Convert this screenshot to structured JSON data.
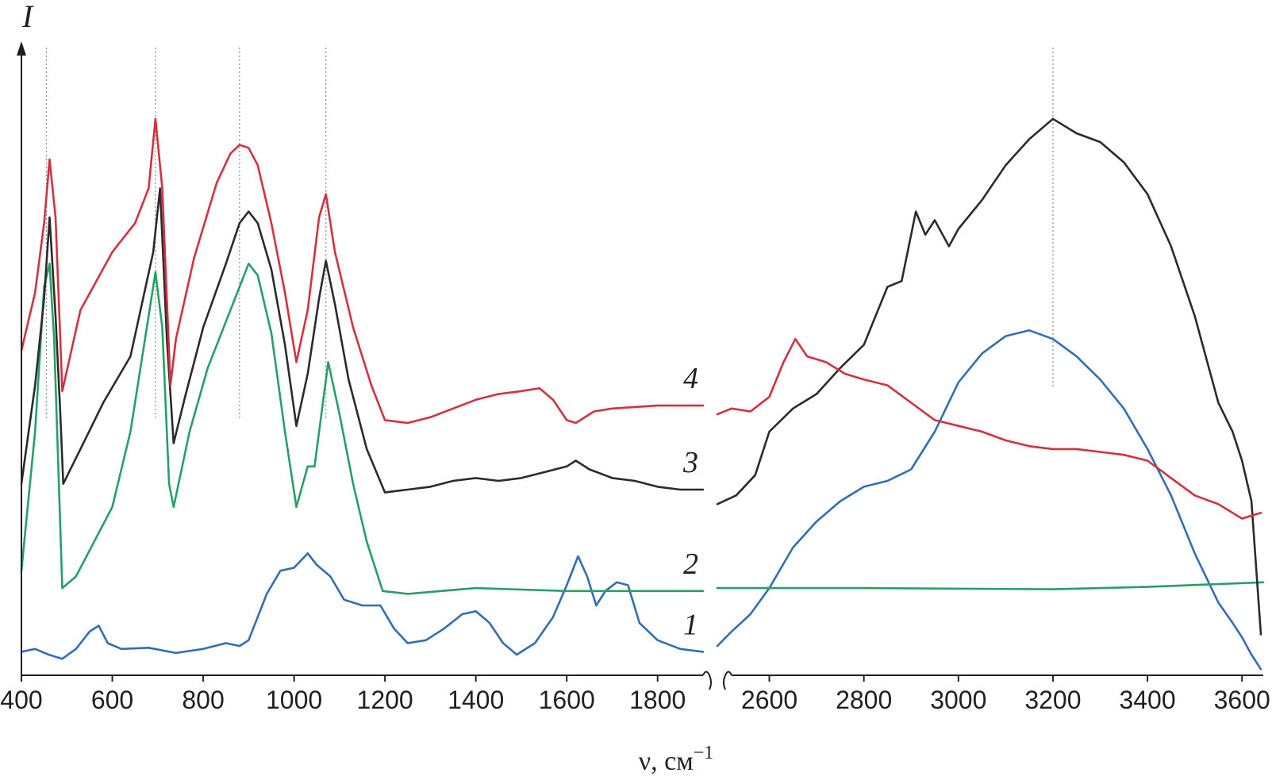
{
  "chart_data": {
    "type": "line",
    "y_axis_title": "I",
    "x_axis_title": "ν, см",
    "x_axis_title_exponent": "−1",
    "x_axis_break": true,
    "panels": [
      {
        "name": "left",
        "xlim": [
          400,
          1900
        ],
        "ticks": [
          400,
          600,
          800,
          1000,
          1200,
          1400,
          1600,
          1800
        ]
      },
      {
        "name": "right",
        "xlim": [
          2490,
          3645
        ],
        "ticks": [
          2600,
          2800,
          3000,
          3200,
          3400,
          3600
        ]
      }
    ],
    "ylim": [
      0,
      100
    ],
    "reference_lines": [
      455,
      695,
      880,
      1070,
      3200
    ],
    "series": [
      {
        "label": "1",
        "color": "#2f6fb7",
        "left": [
          [
            400,
            2
          ],
          [
            430,
            2.5
          ],
          [
            460,
            1.5
          ],
          [
            490,
            0.8
          ],
          [
            520,
            2.5
          ],
          [
            550,
            5.5
          ],
          [
            570,
            6.5
          ],
          [
            590,
            3.5
          ],
          [
            620,
            2.5
          ],
          [
            680,
            2.7
          ],
          [
            740,
            1.8
          ],
          [
            800,
            2.5
          ],
          [
            850,
            3.5
          ],
          [
            880,
            3
          ],
          [
            900,
            4
          ],
          [
            940,
            12
          ],
          [
            970,
            16
          ],
          [
            1000,
            16.5
          ],
          [
            1030,
            19
          ],
          [
            1050,
            17
          ],
          [
            1080,
            15
          ],
          [
            1110,
            11
          ],
          [
            1150,
            10
          ],
          [
            1190,
            10
          ],
          [
            1220,
            6
          ],
          [
            1250,
            3.5
          ],
          [
            1290,
            4
          ],
          [
            1330,
            6
          ],
          [
            1370,
            8.5
          ],
          [
            1400,
            9
          ],
          [
            1430,
            7
          ],
          [
            1460,
            3.5
          ],
          [
            1490,
            1.5
          ],
          [
            1530,
            3.5
          ],
          [
            1570,
            8
          ],
          [
            1600,
            13.5
          ],
          [
            1625,
            18.5
          ],
          [
            1645,
            15
          ],
          [
            1665,
            10
          ],
          [
            1685,
            12.5
          ],
          [
            1710,
            14
          ],
          [
            1735,
            13.5
          ],
          [
            1760,
            7
          ],
          [
            1800,
            4
          ],
          [
            1850,
            2.5
          ],
          [
            1900,
            2
          ]
        ],
        "right": [
          [
            2490,
            3
          ],
          [
            2520,
            5.5
          ],
          [
            2560,
            8.5
          ],
          [
            2600,
            13
          ],
          [
            2650,
            20
          ],
          [
            2700,
            24.5
          ],
          [
            2750,
            28
          ],
          [
            2800,
            30.5
          ],
          [
            2850,
            31.5
          ],
          [
            2900,
            33.5
          ],
          [
            2950,
            40
          ],
          [
            3000,
            48.5
          ],
          [
            3050,
            53.5
          ],
          [
            3100,
            56.5
          ],
          [
            3150,
            57.5
          ],
          [
            3200,
            56
          ],
          [
            3250,
            53
          ],
          [
            3300,
            49
          ],
          [
            3350,
            44
          ],
          [
            3400,
            37
          ],
          [
            3450,
            29
          ],
          [
            3500,
            19
          ],
          [
            3550,
            10.5
          ],
          [
            3580,
            7
          ],
          [
            3600,
            4.5
          ],
          [
            3620,
            1.5
          ],
          [
            3640,
            -1
          ]
        ]
      },
      {
        "label": "2",
        "color": "#24a163",
        "left": [
          [
            400,
            16
          ],
          [
            430,
            40
          ],
          [
            450,
            65
          ],
          [
            462,
            69
          ],
          [
            472,
            56
          ],
          [
            490,
            13
          ],
          [
            520,
            15
          ],
          [
            560,
            21
          ],
          [
            600,
            27
          ],
          [
            640,
            40
          ],
          [
            670,
            55
          ],
          [
            695,
            67.5
          ],
          [
            710,
            58
          ],
          [
            725,
            31
          ],
          [
            735,
            27
          ],
          [
            770,
            40
          ],
          [
            810,
            51
          ],
          [
            850,
            59
          ],
          [
            880,
            65
          ],
          [
            900,
            69
          ],
          [
            920,
            67
          ],
          [
            950,
            57
          ],
          [
            980,
            40
          ],
          [
            1005,
            27
          ],
          [
            1030,
            34
          ],
          [
            1045,
            34
          ],
          [
            1075,
            52
          ],
          [
            1100,
            43
          ],
          [
            1130,
            31
          ],
          [
            1160,
            21
          ],
          [
            1195,
            12.5
          ],
          [
            1250,
            12
          ],
          [
            1400,
            13
          ],
          [
            1600,
            12.5
          ],
          [
            1900,
            12.5
          ]
        ],
        "right": [
          [
            2490,
            13
          ],
          [
            2800,
            13
          ],
          [
            3200,
            12.8
          ],
          [
            3400,
            13.2
          ],
          [
            3645,
            14
          ]
        ]
      },
      {
        "label": "3",
        "color": "#2b2b2b",
        "left": [
          [
            400,
            31
          ],
          [
            430,
            48
          ],
          [
            450,
            63
          ],
          [
            462,
            77
          ],
          [
            475,
            60
          ],
          [
            485,
            44
          ],
          [
            492,
            31
          ],
          [
            530,
            37
          ],
          [
            580,
            45
          ],
          [
            640,
            53
          ],
          [
            690,
            71
          ],
          [
            705,
            82
          ],
          [
            720,
            56
          ],
          [
            735,
            38
          ],
          [
            760,
            46
          ],
          [
            800,
            58
          ],
          [
            850,
            69
          ],
          [
            880,
            76
          ],
          [
            900,
            78
          ],
          [
            920,
            76
          ],
          [
            950,
            68
          ],
          [
            980,
            55
          ],
          [
            1005,
            41
          ],
          [
            1030,
            50
          ],
          [
            1055,
            63
          ],
          [
            1070,
            69.5
          ],
          [
            1090,
            62
          ],
          [
            1120,
            49
          ],
          [
            1160,
            37
          ],
          [
            1200,
            29.5
          ],
          [
            1250,
            30
          ],
          [
            1300,
            30.5
          ],
          [
            1350,
            31.5
          ],
          [
            1400,
            32
          ],
          [
            1450,
            31.5
          ],
          [
            1500,
            32
          ],
          [
            1550,
            33
          ],
          [
            1600,
            34
          ],
          [
            1620,
            35
          ],
          [
            1650,
            33.5
          ],
          [
            1700,
            32
          ],
          [
            1750,
            31.5
          ],
          [
            1800,
            30.5
          ],
          [
            1850,
            30
          ],
          [
            1900,
            30
          ]
        ],
        "right": [
          [
            2490,
            27.5
          ],
          [
            2530,
            29
          ],
          [
            2570,
            32.5
          ],
          [
            2600,
            40
          ],
          [
            2650,
            44
          ],
          [
            2700,
            46.5
          ],
          [
            2750,
            51
          ],
          [
            2800,
            55
          ],
          [
            2850,
            65
          ],
          [
            2880,
            66
          ],
          [
            2910,
            78
          ],
          [
            2930,
            74
          ],
          [
            2950,
            76.5
          ],
          [
            2980,
            72
          ],
          [
            3000,
            75
          ],
          [
            3050,
            80
          ],
          [
            3100,
            86
          ],
          [
            3150,
            90.5
          ],
          [
            3200,
            94
          ],
          [
            3250,
            91.5
          ],
          [
            3300,
            90
          ],
          [
            3350,
            86.5
          ],
          [
            3400,
            81
          ],
          [
            3450,
            72
          ],
          [
            3500,
            60
          ],
          [
            3550,
            45
          ],
          [
            3580,
            40
          ],
          [
            3600,
            35
          ],
          [
            3620,
            28
          ],
          [
            3640,
            5
          ]
        ]
      },
      {
        "label": "4",
        "color": "#d4313f",
        "left": [
          [
            400,
            54
          ],
          [
            430,
            64
          ],
          [
            450,
            76
          ],
          [
            462,
            87
          ],
          [
            475,
            77
          ],
          [
            490,
            47
          ],
          [
            530,
            61
          ],
          [
            600,
            71
          ],
          [
            650,
            76
          ],
          [
            680,
            82
          ],
          [
            695,
            94
          ],
          [
            710,
            82
          ],
          [
            728,
            48
          ],
          [
            740,
            56
          ],
          [
            780,
            70
          ],
          [
            830,
            83
          ],
          [
            860,
            88
          ],
          [
            880,
            89.5
          ],
          [
            900,
            89
          ],
          [
            920,
            86
          ],
          [
            950,
            76
          ],
          [
            980,
            64
          ],
          [
            1005,
            52
          ],
          [
            1030,
            61
          ],
          [
            1055,
            77
          ],
          [
            1070,
            81
          ],
          [
            1090,
            71
          ],
          [
            1130,
            58
          ],
          [
            1170,
            48
          ],
          [
            1200,
            42
          ],
          [
            1250,
            41.5
          ],
          [
            1300,
            42.5
          ],
          [
            1400,
            45.5
          ],
          [
            1450,
            46.5
          ],
          [
            1500,
            47
          ],
          [
            1540,
            47.5
          ],
          [
            1570,
            45.5
          ],
          [
            1600,
            42
          ],
          [
            1620,
            41.5
          ],
          [
            1660,
            43.5
          ],
          [
            1700,
            44
          ],
          [
            1800,
            44.5
          ],
          [
            1900,
            44.5
          ]
        ],
        "right": [
          [
            2490,
            43
          ],
          [
            2520,
            44
          ],
          [
            2560,
            43.5
          ],
          [
            2600,
            46
          ],
          [
            2630,
            52
          ],
          [
            2655,
            56
          ],
          [
            2680,
            53
          ],
          [
            2720,
            52
          ],
          [
            2760,
            50
          ],
          [
            2800,
            49
          ],
          [
            2850,
            48
          ],
          [
            2900,
            45
          ],
          [
            2950,
            42
          ],
          [
            3000,
            41
          ],
          [
            3050,
            40
          ],
          [
            3100,
            38.5
          ],
          [
            3150,
            37.5
          ],
          [
            3200,
            37
          ],
          [
            3250,
            37
          ],
          [
            3300,
            36.5
          ],
          [
            3350,
            36
          ],
          [
            3400,
            35
          ],
          [
            3450,
            32
          ],
          [
            3500,
            29
          ],
          [
            3550,
            27.5
          ],
          [
            3600,
            25
          ],
          [
            3640,
            26
          ]
        ]
      }
    ]
  }
}
